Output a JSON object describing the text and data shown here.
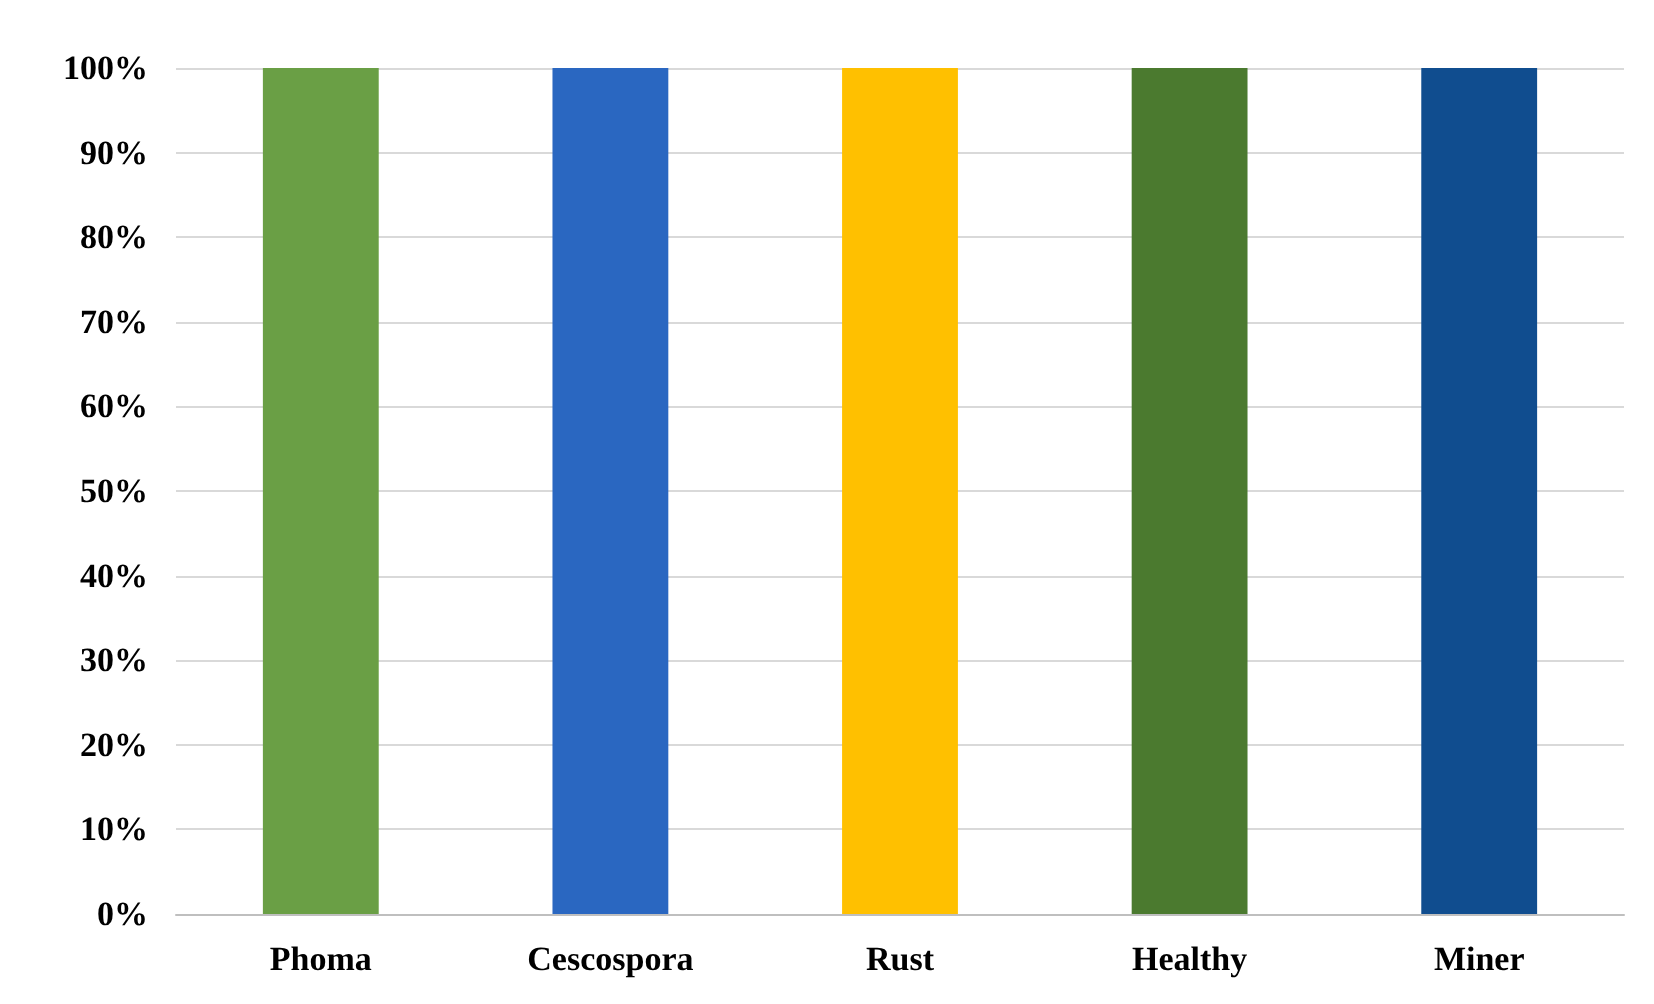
{
  "chart_data": {
    "type": "bar",
    "categories": [
      "Phoma",
      "Cescospora",
      "Rust",
      "Healthy",
      "Miner"
    ],
    "values": [
      100,
      100,
      100,
      100,
      100
    ],
    "colors": [
      "#6a9f45",
      "#2a67c1",
      "#ffc000",
      "#4b7a2f",
      "#104d8f"
    ],
    "ylim": [
      0,
      100
    ],
    "yticks": [
      {
        "value": 0,
        "label": "0%"
      },
      {
        "value": 10,
        "label": "10%"
      },
      {
        "value": 20,
        "label": "20%"
      },
      {
        "value": 30,
        "label": "30%"
      },
      {
        "value": 40,
        "label": "40%"
      },
      {
        "value": 50,
        "label": "50%"
      },
      {
        "value": 60,
        "label": "60%"
      },
      {
        "value": 70,
        "label": "70%"
      },
      {
        "value": 80,
        "label": "80%"
      },
      {
        "value": 90,
        "label": "90%"
      },
      {
        "value": 100,
        "label": "100%"
      }
    ],
    "grid": "y"
  }
}
